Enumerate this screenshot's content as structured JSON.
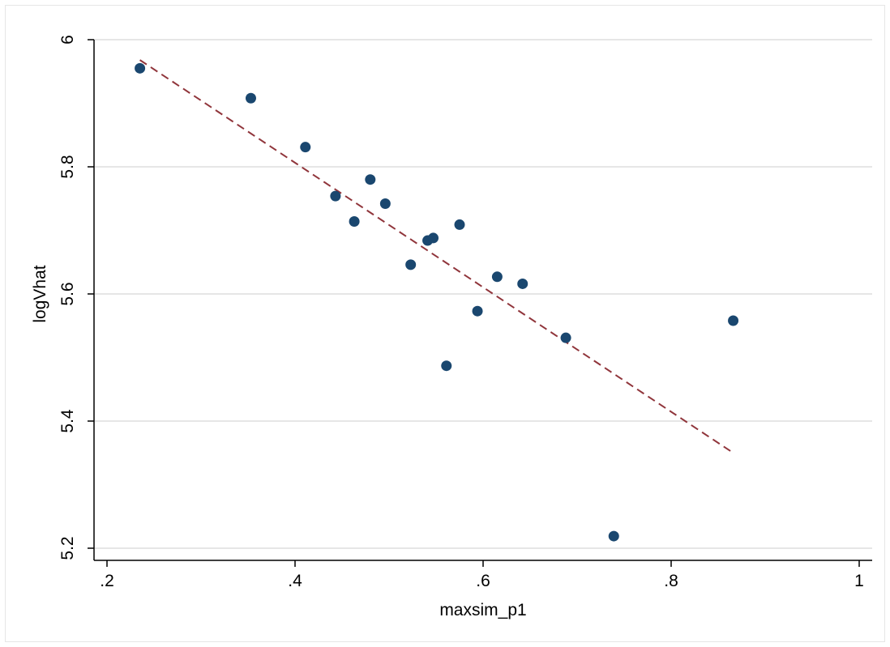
{
  "chart_data": {
    "type": "scatter",
    "title": "",
    "xlabel": "maxsim_p1",
    "ylabel": "logVhat",
    "xlim": [
      0.2,
      1.0
    ],
    "ylim": [
      5.2,
      6.0
    ],
    "x_ticks": [
      0.2,
      0.4,
      0.6,
      0.8,
      1.0
    ],
    "x_tick_labels": [
      ".2",
      ".4",
      ".6",
      ".8",
      "1"
    ],
    "y_ticks": [
      5.2,
      5.4,
      5.6,
      5.8,
      6.0
    ],
    "y_tick_labels": [
      "5.2",
      "5.4",
      "5.6",
      "5.8",
      "6"
    ],
    "grid": "horizontal",
    "legend": "none",
    "colors": {
      "points": "#1a476f",
      "fit_line": "#90353b",
      "grid": "#e6e6e6"
    },
    "series": [
      {
        "type": "scatter",
        "points": [
          {
            "x": 0.235,
            "y": 5.955
          },
          {
            "x": 0.353,
            "y": 5.908
          },
          {
            "x": 0.411,
            "y": 5.831
          },
          {
            "x": 0.443,
            "y": 5.754
          },
          {
            "x": 0.463,
            "y": 5.714
          },
          {
            "x": 0.48,
            "y": 5.78
          },
          {
            "x": 0.496,
            "y": 5.742
          },
          {
            "x": 0.523,
            "y": 5.646
          },
          {
            "x": 0.541,
            "y": 5.684
          },
          {
            "x": 0.547,
            "y": 5.688
          },
          {
            "x": 0.561,
            "y": 5.487
          },
          {
            "x": 0.575,
            "y": 5.709
          },
          {
            "x": 0.594,
            "y": 5.573
          },
          {
            "x": 0.615,
            "y": 5.627
          },
          {
            "x": 0.642,
            "y": 5.616
          },
          {
            "x": 0.688,
            "y": 5.531
          },
          {
            "x": 0.739,
            "y": 5.219
          },
          {
            "x": 0.866,
            "y": 5.558
          }
        ]
      },
      {
        "type": "line",
        "style": "dashed",
        "points": [
          {
            "x": 0.235,
            "y": 5.968
          },
          {
            "x": 0.866,
            "y": 5.35
          }
        ]
      }
    ]
  }
}
